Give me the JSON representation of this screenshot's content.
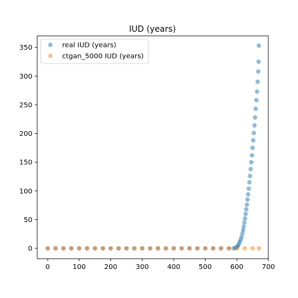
{
  "chart_data": {
    "type": "scatter",
    "title": "IUD (years)",
    "xlabel": "",
    "ylabel": "",
    "xlim": [
      -33,
      700
    ],
    "ylim": [
      -18,
      370
    ],
    "xticks": [
      0,
      100,
      200,
      300,
      400,
      500,
      600,
      700
    ],
    "yticks": [
      0,
      50,
      100,
      150,
      200,
      250,
      300,
      350
    ],
    "grid": false,
    "legend_position": "upper-left",
    "series": [
      {
        "name": "real IUD (years)",
        "color": "#1f77b4",
        "alpha": 0.5,
        "x": [
          0,
          25,
          50,
          75,
          100,
          125,
          150,
          175,
          200,
          225,
          250,
          275,
          300,
          325,
          350,
          375,
          400,
          425,
          450,
          475,
          500,
          525,
          550,
          575,
          590,
          596,
          600,
          603,
          606,
          609,
          612,
          615,
          618,
          620,
          622,
          624,
          626,
          628,
          630,
          632,
          634,
          636,
          638,
          640,
          642,
          644,
          646,
          648,
          650,
          652,
          654,
          656,
          658,
          660,
          662,
          664,
          666,
          668,
          669,
          670
        ],
        "y": [
          0,
          0,
          0,
          0,
          0,
          0,
          0,
          0,
          0,
          0,
          0,
          0,
          0,
          0,
          0,
          0,
          0,
          0,
          0,
          0,
          0,
          0,
          0,
          0,
          0,
          1,
          2,
          4,
          7,
          11,
          15,
          20,
          26,
          32,
          38,
          45,
          52,
          60,
          68,
          76,
          85,
          94,
          104,
          115,
          126,
          138,
          150,
          162,
          175,
          188,
          201,
          214,
          228,
          243,
          258,
          273,
          290,
          308,
          325,
          353
        ]
      },
      {
        "name": "ctgan_5000 IUD (years)",
        "color": "#ff7f0e",
        "alpha": 0.5,
        "x": [
          0,
          25,
          50,
          75,
          100,
          125,
          150,
          175,
          200,
          225,
          250,
          275,
          300,
          325,
          350,
          375,
          400,
          425,
          450,
          475,
          500,
          525,
          550,
          575,
          600,
          625,
          650,
          670
        ],
        "y": [
          0,
          0,
          0,
          0,
          0,
          0,
          0,
          0,
          0,
          0,
          0,
          0,
          0,
          0,
          0,
          0,
          0,
          0,
          0,
          0,
          0,
          0,
          0,
          0,
          0,
          0,
          0,
          0
        ]
      }
    ]
  }
}
